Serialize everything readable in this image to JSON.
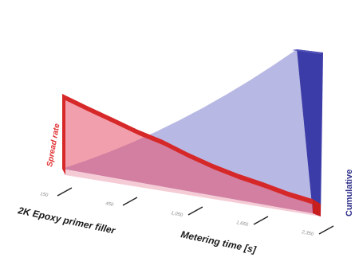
{
  "chart_data": {
    "type": "area",
    "style": "3d-perspective",
    "xlabel": "Metering time [s]",
    "depth_label": "2K Epoxy primer filler",
    "x_tick_labels": [
      "150",
      "450",
      "1,050",
      "1,650",
      "2,350"
    ],
    "x": [
      0,
      0.1,
      0.2,
      0.3,
      0.4,
      0.5,
      0.6,
      0.7,
      0.8,
      0.9,
      1.0
    ],
    "series": [
      {
        "name": "Spread rate",
        "color": "#e03030",
        "values": [
          1.0,
          0.95,
          0.9,
          0.84,
          0.8,
          0.71,
          0.63,
          0.57,
          0.53,
          0.46,
          0.42
        ]
      },
      {
        "name": "Cumulative",
        "color": "#4a4aa8",
        "values": [
          0.0,
          0.1,
          0.2,
          0.3,
          0.4,
          0.5,
          0.6,
          0.7,
          0.8,
          0.9,
          1.0
        ]
      }
    ],
    "grid": false,
    "legend": "none"
  }
}
